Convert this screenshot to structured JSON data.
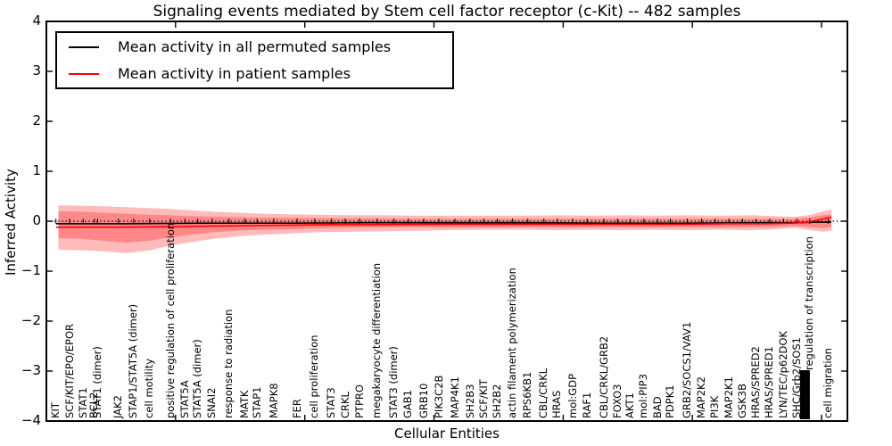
{
  "chart_data": {
    "type": "line",
    "title": "Signaling events mediated by Stem cell factor receptor (c-Kit) -- 482 samples",
    "xlabel": "Cellular Entities",
    "ylabel": "Inferred Activity",
    "ylim": [
      -4,
      4
    ],
    "yticks": [
      4,
      3,
      2,
      1,
      0,
      -1,
      -2,
      -3,
      -4
    ],
    "xlim": [
      0,
      62
    ],
    "xticks": [
      0,
      10,
      20,
      30,
      40,
      50,
      60
    ],
    "grid": false,
    "tick_direction": "in",
    "zero_line": {
      "value": 0,
      "style": "dotted",
      "color": "#000000"
    },
    "legend": {
      "position": "upper-left",
      "entries": [
        {
          "label": "Mean activity in all permuted samples",
          "color": "#000000"
        },
        {
          "label": "Mean activity in patient samples",
          "color": "#ff0000"
        }
      ]
    },
    "band_color": "#ff0000",
    "band_opacity": 0.27,
    "entities": [
      {
        "label": "KIT",
        "x": 1.2
      },
      {
        "label": "SCF/KIT/EPO/EPOR",
        "x": 2.9
      },
      {
        "label": "STAT1",
        "x": 4.6
      },
      {
        "label": "BCL2",
        "x": 6.0
      },
      {
        "label": "STAT1 (dimer)",
        "x": 6.4
      },
      {
        "label": "JAK2",
        "x": 9.0
      },
      {
        "label": "STAP1/STAT5A (dimer)",
        "x": 10.9
      },
      {
        "label": "cell motility",
        "x": 12.9
      },
      {
        "label": "positive regulation of cell proliferation",
        "x": 15.5
      },
      {
        "label": "STAT5A",
        "x": 17.3
      },
      {
        "label": "STAT5A (dimer)",
        "x": 18.9
      },
      {
        "label": "SNAI2",
        "x": 20.7
      },
      {
        "label": "response to radiation",
        "x": 22.8
      },
      {
        "label": "MATK",
        "x": 24.8
      },
      {
        "label": "STAP1",
        "x": 26.3
      },
      {
        "label": "MAPK8",
        "x": 28.4
      },
      {
        "label": "FER",
        "x": 31.3
      },
      {
        "label": "cell proliferation",
        "x": 33.5
      },
      {
        "label": "STAT3",
        "x": 35.6
      },
      {
        "label": "CRKL",
        "x": 37.3
      },
      {
        "label": "PTPRO",
        "x": 39.1
      },
      {
        "label": "megakaryocyte differentiation",
        "x": 41.3
      },
      {
        "label": "STAT3 (dimer)",
        "x": 43.4
      },
      {
        "label": "GAB1",
        "x": 45.2
      },
      {
        "label": "GRB10",
        "x": 47.1
      },
      {
        "label": "PIK3C2B",
        "x": 49.0
      },
      {
        "label": "MAP4K1",
        "x": 51.0
      },
      {
        "label": "SH2B3",
        "x": 52.9
      },
      {
        "label": "SCF/KIT",
        "x": 54.6
      },
      {
        "label": "SH2B2",
        "x": 56.3
      },
      {
        "label": "actin filament polymerization",
        "x": 58.2
      },
      {
        "label": "RPS6KB1",
        "x": 60.1
      },
      {
        "label": "CBL/CRKL",
        "x": 62.1
      },
      {
        "label": "HRAS",
        "x": 63.8
      },
      {
        "label": "mol:GDP",
        "x": 65.7
      },
      {
        "label": "RAF1",
        "x": 67.5
      },
      {
        "label": "CBL/CRKL/GRB2",
        "x": 69.6
      },
      {
        "label": "FOXO3",
        "x": 71.3
      },
      {
        "label": "AKT1",
        "x": 72.9
      },
      {
        "label": "mol:PIP3",
        "x": 74.6
      },
      {
        "label": "BAD",
        "x": 76.3
      },
      {
        "label": "PDPK1",
        "x": 77.9
      },
      {
        "label": "GRB2/SOCS1/VAV1",
        "x": 80.0
      },
      {
        "label": "MAP2K2",
        "x": 81.8
      },
      {
        "label": "PI3K",
        "x": 83.5
      },
      {
        "label": "MAP2K1",
        "x": 85.2
      },
      {
        "label": "GSK3B",
        "x": 86.9
      },
      {
        "label": "HRAS/SPRED2",
        "x": 88.6
      },
      {
        "label": "HRAS/SPRED1",
        "x": 90.3
      },
      {
        "label": "LYN/TEC/p62DOK",
        "x": 92.0
      },
      {
        "label": "SHC/Grb2/SOS1",
        "x": 93.7
      },
      {
        "label": "regulation of transcription",
        "x": 95.3,
        "partially_hidden": true
      },
      {
        "label": "cell migration",
        "x": 97.6
      }
    ],
    "unreadable_label_cluster": {
      "x": 94.7,
      "note": "many overlapping entity labels form a solid black smear near the x-axis"
    },
    "series": [
      {
        "name": "Mean activity in all permuted samples",
        "color": "#000000",
        "points": [
          [
            1.2,
            -0.05
          ],
          [
            10,
            -0.05
          ],
          [
            20,
            -0.04
          ],
          [
            30,
            -0.04
          ],
          [
            40,
            -0.03
          ],
          [
            50,
            -0.03
          ],
          [
            60,
            -0.03
          ],
          [
            70,
            -0.04
          ],
          [
            80,
            -0.04
          ],
          [
            90,
            -0.03
          ],
          [
            94,
            -0.03
          ],
          [
            96,
            -0.02
          ],
          [
            98,
            -0.02
          ]
        ]
      },
      {
        "name": "Mean activity in patient samples",
        "color": "#ff0000",
        "points": [
          [
            1.2,
            -0.12
          ],
          [
            8,
            -0.12
          ],
          [
            15,
            -0.11
          ],
          [
            20,
            -0.1
          ],
          [
            25,
            -0.09
          ],
          [
            30,
            -0.08
          ],
          [
            35,
            -0.07
          ],
          [
            40,
            -0.07
          ],
          [
            50,
            -0.06
          ],
          [
            60,
            -0.06
          ],
          [
            70,
            -0.06
          ],
          [
            80,
            -0.06
          ],
          [
            85,
            -0.05
          ],
          [
            90,
            -0.05
          ],
          [
            93,
            -0.04
          ],
          [
            95,
            -0.02
          ],
          [
            96.5,
            0.03
          ],
          [
            97.6,
            0.07
          ],
          [
            98,
            0.08
          ]
        ]
      }
    ],
    "bands": [
      {
        "name": "outer std band",
        "points": [
          [
            1.5,
            0.32,
            -0.57
          ],
          [
            4,
            0.31,
            -0.58
          ],
          [
            7,
            0.3,
            -0.6
          ],
          [
            10,
            0.28,
            -0.64
          ],
          [
            13,
            0.26,
            -0.58
          ],
          [
            15,
            0.25,
            -0.5
          ],
          [
            18,
            0.22,
            -0.42
          ],
          [
            21,
            0.19,
            -0.35
          ],
          [
            24,
            0.17,
            -0.3
          ],
          [
            27,
            0.15,
            -0.27
          ],
          [
            30,
            0.14,
            -0.25
          ],
          [
            34,
            0.13,
            -0.22
          ],
          [
            38,
            0.12,
            -0.21
          ],
          [
            42,
            0.12,
            -0.2
          ],
          [
            46,
            0.11,
            -0.19
          ],
          [
            50,
            0.11,
            -0.18
          ],
          [
            55,
            0.11,
            -0.17
          ],
          [
            60,
            0.11,
            -0.17
          ],
          [
            64,
            0.12,
            -0.18
          ],
          [
            68,
            0.11,
            -0.17
          ],
          [
            72,
            0.12,
            -0.18
          ],
          [
            76,
            0.11,
            -0.17
          ],
          [
            80,
            0.12,
            -0.18
          ],
          [
            84,
            0.11,
            -0.17
          ],
          [
            88,
            0.12,
            -0.18
          ],
          [
            91,
            0.1,
            -0.16
          ],
          [
            93.5,
            0.09,
            -0.13
          ],
          [
            95.5,
            0.13,
            -0.18
          ],
          [
            97,
            0.2,
            -0.21
          ],
          [
            98,
            0.23,
            -0.19
          ]
        ]
      },
      {
        "name": "inner std band",
        "points": [
          [
            1.5,
            0.2,
            -0.34
          ],
          [
            4,
            0.19,
            -0.35
          ],
          [
            7,
            0.17,
            -0.39
          ],
          [
            10,
            0.15,
            -0.43
          ],
          [
            13,
            0.13,
            -0.39
          ],
          [
            15,
            0.12,
            -0.33
          ],
          [
            18,
            0.1,
            -0.27
          ],
          [
            21,
            0.09,
            -0.22
          ],
          [
            24,
            0.08,
            -0.19
          ],
          [
            27,
            0.07,
            -0.17
          ],
          [
            30,
            0.07,
            -0.16
          ],
          [
            35,
            0.06,
            -0.14
          ],
          [
            40,
            0.06,
            -0.13
          ],
          [
            45,
            0.05,
            -0.12
          ],
          [
            50,
            0.05,
            -0.12
          ],
          [
            55,
            0.05,
            -0.12
          ],
          [
            60,
            0.05,
            -0.11
          ],
          [
            65,
            0.05,
            -0.12
          ],
          [
            70,
            0.05,
            -0.11
          ],
          [
            75,
            0.05,
            -0.12
          ],
          [
            80,
            0.05,
            -0.11
          ],
          [
            85,
            0.05,
            -0.12
          ],
          [
            90,
            0.05,
            -0.11
          ],
          [
            93.5,
            0.05,
            -0.1
          ],
          [
            95.5,
            0.08,
            -0.12
          ],
          [
            97,
            0.12,
            -0.14
          ],
          [
            98,
            0.13,
            -0.11
          ]
        ]
      }
    ]
  }
}
